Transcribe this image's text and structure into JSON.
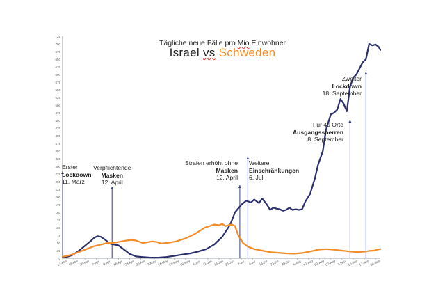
{
  "header": {
    "subtitle_pre": "Tägliche neue Fälle pro ",
    "subtitle_und": "Mio",
    "subtitle_post": " Einwohner",
    "title_israel": "Israel",
    "title_vs": "vs",
    "title_sweden": "Schweden"
  },
  "annotations": [
    {
      "id": "lockdown1",
      "line1": "Erster",
      "bold": "Lockdown",
      "line3": "11. März"
    },
    {
      "id": "masks",
      "line1": "Verpflichtende",
      "bold": "Masken",
      "line3": "12. April"
    },
    {
      "id": "fines",
      "line1": "Strafen erhöht ohne",
      "bold": "Masken",
      "line3": "12. April"
    },
    {
      "id": "restrictions",
      "line1": "Weitere",
      "bold": "Einschränkungen",
      "line3": "6. Juli"
    },
    {
      "id": "curfew",
      "line1": "Für 40 Orte",
      "bold": "Ausgangssperren",
      "line3": "8. September"
    },
    {
      "id": "lockdown2",
      "line1": "Zweiter",
      "bold": "Lockdown",
      "line3": "18. September"
    }
  ],
  "chart_data": {
    "type": "line",
    "title": "Israel vs Schweden",
    "subtitle": "Tägliche neue Fälle pro Mio Einwohner",
    "ylim": [
      0,
      725
    ],
    "y_ticks": [
      0,
      25,
      50,
      75,
      100,
      125,
      150,
      175,
      200,
      225,
      250,
      275,
      300,
      325,
      350,
      375,
      400,
      425,
      450,
      475,
      500,
      525,
      550,
      575,
      600,
      625,
      650,
      675,
      700,
      725
    ],
    "y_tick_labels": [
      "0",
      "25",
      "50",
      "75",
      "100",
      "125",
      "150",
      "175",
      "200",
      "225",
      "250",
      "275",
      "300",
      "325",
      "350",
      "375",
      "400",
      "425",
      "450",
      "475",
      "500",
      "525",
      "550",
      "575",
      "600",
      "625",
      "650",
      "675",
      "700",
      "725"
    ],
    "x_tick_labels": [
      "12-Mar",
      "19-Mar",
      "26-Mar",
      "2-Apr",
      "9-Apr",
      "16-Apr",
      "23-Apr",
      "30-Apr",
      "7-May",
      "14-May",
      "21-May",
      "28-May",
      "4-Jun",
      "11-Jun",
      "18-Jun",
      "25-Jun",
      "2-Jul",
      "9-Jul",
      "16-Jul",
      "23-Jul",
      "30-Jul",
      "6-Aug",
      "13-Aug",
      "20-Aug",
      "27-Aug",
      "3-Sep",
      "10-Sep",
      "17-Sep",
      "24-Sep"
    ],
    "x_range_days": [
      0,
      199
    ],
    "grid": false,
    "legend": "title",
    "series": [
      {
        "name": "Israel",
        "color": "#2b2f6b",
        "x": [
          0,
          3,
          6,
          9,
          12,
          15,
          18,
          20,
          22,
          24,
          26,
          28,
          30,
          32,
          35,
          38,
          42,
          46,
          50,
          55,
          60,
          65,
          70,
          75,
          80,
          85,
          90,
          95,
          100,
          105,
          108,
          112,
          115,
          118,
          120,
          123,
          125,
          128,
          130,
          132,
          134,
          136,
          138,
          140,
          142,
          144,
          146,
          148,
          150,
          152,
          155,
          158,
          160,
          163,
          165,
          168,
          170,
          172,
          174,
          176,
          178,
          180,
          182,
          184,
          186,
          188,
          190,
          191,
          192,
          194,
          196,
          198,
          199
        ],
        "y": [
          2,
          5,
          10,
          20,
          32,
          45,
          58,
          68,
          72,
          70,
          63,
          55,
          47,
          45,
          42,
          30,
          14,
          6,
          4,
          2,
          2,
          4,
          8,
          12,
          16,
          22,
          30,
          45,
          70,
          110,
          150,
          175,
          188,
          182,
          192,
          180,
          195,
          175,
          158,
          165,
          162,
          160,
          155,
          158,
          165,
          158,
          160,
          158,
          160,
          185,
          210,
          260,
          305,
          350,
          420,
          470,
          475,
          485,
          520,
          505,
          480,
          560,
          590,
          600,
          620,
          640,
          650,
          675,
          700,
          695,
          698,
          690,
          680
        ]
      },
      {
        "name": "Schweden",
        "color": "#f28c28",
        "x": [
          0,
          3,
          6,
          9,
          12,
          15,
          18,
          20,
          22,
          25,
          28,
          31,
          34,
          37,
          40,
          43,
          46,
          50,
          53,
          56,
          59,
          62,
          65,
          68,
          71,
          74,
          77,
          80,
          83,
          86,
          89,
          92,
          95,
          98,
          100,
          102,
          104,
          106,
          108,
          110,
          113,
          116,
          120,
          125,
          130,
          135,
          140,
          145,
          150,
          155,
          160,
          165,
          170,
          175,
          180,
          185,
          190,
          192,
          195,
          197,
          199
        ],
        "y": [
          5,
          8,
          12,
          18,
          24,
          30,
          36,
          40,
          42,
          46,
          50,
          50,
          52,
          55,
          58,
          60,
          58,
          50,
          52,
          55,
          53,
          48,
          50,
          52,
          55,
          60,
          65,
          72,
          80,
          90,
          100,
          105,
          110,
          108,
          112,
          105,
          108,
          110,
          105,
          75,
          50,
          38,
          30,
          25,
          20,
          18,
          16,
          15,
          17,
          22,
          28,
          30,
          28,
          25,
          22,
          20,
          22,
          24,
          25,
          28,
          30
        ]
      }
    ]
  }
}
